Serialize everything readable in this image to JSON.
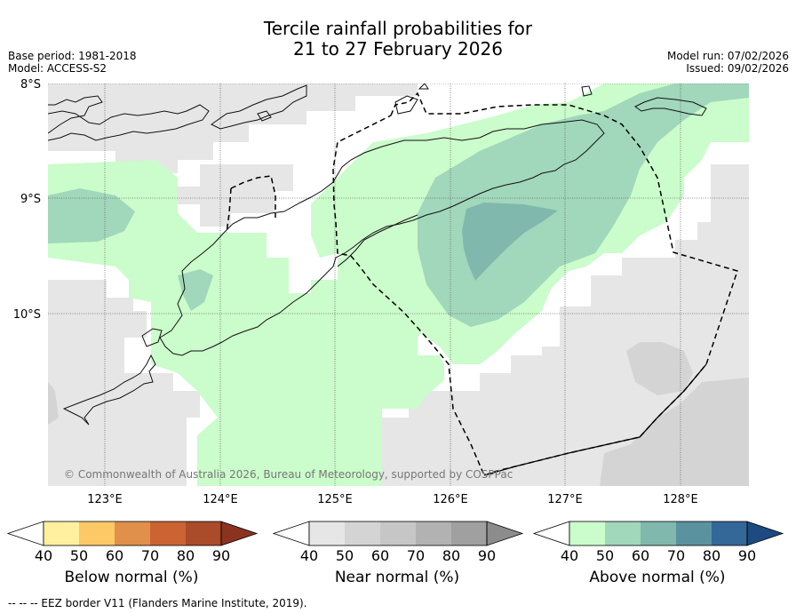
{
  "header": {
    "title_line1": "Tercile rainfall probabilities for",
    "title_line2": "21 to 27 February 2026",
    "base_period": "Base period: 1981-2018",
    "model": "Model: ACCESS-S2",
    "model_run": "Model run: 07/02/2026",
    "issued": "Issued: 09/02/2026"
  },
  "map": {
    "lat_labels": [
      "8°S",
      "9°S",
      "10°S"
    ],
    "lon_labels": [
      "123°E",
      "124°E",
      "125°E",
      "126°E",
      "127°E",
      "128°E"
    ],
    "copyright": "© Commonwealth of Australia 2026, Bureau of Meteorology, supported by COSPPac"
  },
  "colorbars": [
    {
      "label": "Below normal (%)",
      "ticks": [
        "40",
        "50",
        "60",
        "70",
        "80",
        "90"
      ],
      "colors": [
        "#ffffff",
        "#fff0a0",
        "#fdc966",
        "#e0904a",
        "#cb6432",
        "#aa4b2a",
        "#8c3320"
      ]
    },
    {
      "label": "Near normal (%)",
      "ticks": [
        "40",
        "50",
        "60",
        "70",
        "80",
        "90"
      ],
      "colors": [
        "#ffffff",
        "#e6e6e6",
        "#d4d4d4",
        "#c6c6c6",
        "#b2b2b2",
        "#a0a0a0",
        "#8c8c8c"
      ]
    },
    {
      "label": "Above normal (%)",
      "ticks": [
        "40",
        "50",
        "60",
        "70",
        "80",
        "90"
      ],
      "colors": [
        "#ffffff",
        "#cbfccb",
        "#a1d7ba",
        "#81b8ad",
        "#5a92a0",
        "#336898",
        "#1d4a80"
      ]
    }
  ],
  "footer": {
    "text": "--  --  -- EEZ border V11 (Flanders Marine Institute, 2019)."
  },
  "colors": {
    "near_light": "#e6e6e6",
    "near_mid": "#d4d4d4",
    "above_50": "#cbfccb",
    "above_60": "#a1d7ba",
    "above_70": "#81b8ad"
  }
}
